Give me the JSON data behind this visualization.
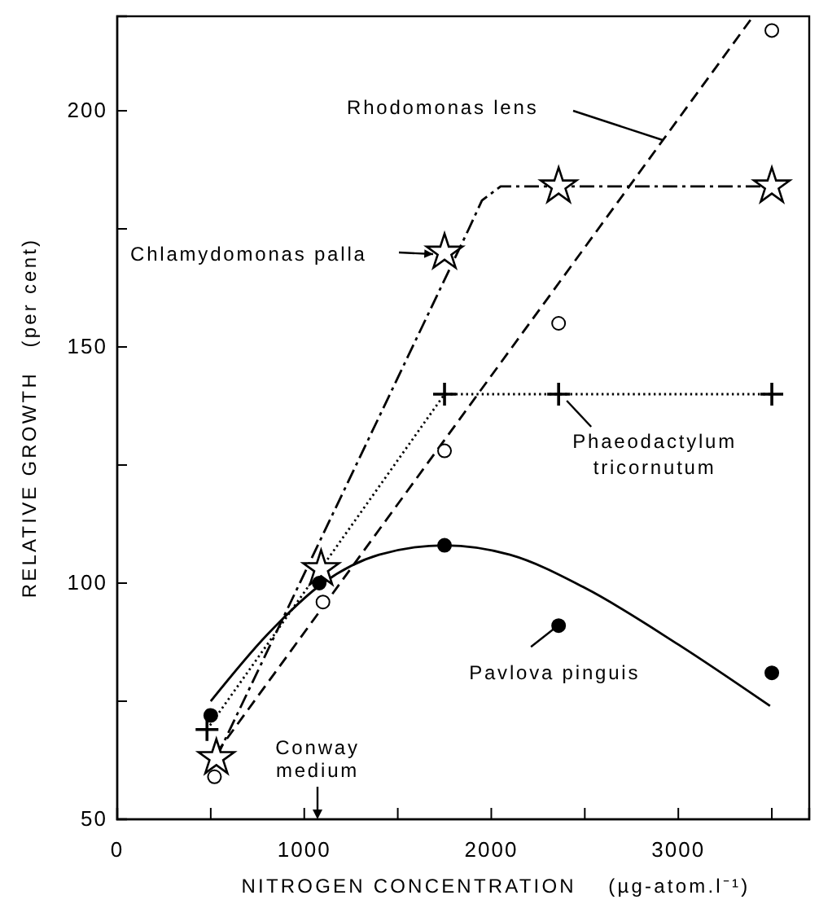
{
  "chart_data": {
    "type": "scatter",
    "xlabel": "NITROGEN CONCENTRATION (µg-atom.l⁻¹)",
    "ylabel": "RELATIVE GROWTH (per cent)",
    "xlim": [
      0,
      3700
    ],
    "ylim": [
      50,
      220
    ],
    "xticks": [
      0,
      {
        "value": 500,
        "label": null
      },
      1000,
      {
        "value": 1500,
        "label": null
      },
      2000,
      {
        "value": 2500,
        "label": null
      },
      3000,
      {
        "value": 3500,
        "label": null
      }
    ],
    "yticks": [
      50,
      {
        "value": 75,
        "label": null
      },
      100,
      {
        "value": 125,
        "label": null
      },
      150,
      {
        "value": 175,
        "label": null
      },
      200
    ],
    "grid": false,
    "series": [
      {
        "marker": "circle",
        "color": "#ffffff",
        "x": [
          520,
          1100,
          1750,
          2360,
          3500
        ],
        "values": [
          59,
          96,
          128,
          155,
          217
        ]
      },
      {
        "type": "line",
        "line_style": "dashed",
        "marker": "none",
        "color": "#000000",
        "x": [
          530,
          3400
        ],
        "values": [
          64,
          220
        ]
      },
      {
        "marker": "star",
        "color": "#ffffff",
        "x": [
          530,
          1090,
          1750,
          2360,
          3500
        ],
        "values": [
          63,
          103,
          170,
          184,
          184
        ]
      },
      {
        "type": "line",
        "line_style": "dashdot",
        "marker": "none",
        "color": "#000000",
        "x": [
          530,
          1880,
          1950,
          2050,
          3500
        ],
        "values": [
          63,
          175,
          181,
          184,
          184
        ]
      },
      {
        "marker": "cross",
        "color": "#000000",
        "x": [
          480,
          1750,
          2360,
          3500
        ],
        "values": [
          69,
          140,
          140,
          140
        ]
      },
      {
        "type": "line",
        "line_style": "dotted",
        "marker": "none",
        "color": "#000000",
        "x": [
          480,
          1750,
          3500
        ],
        "values": [
          69,
          140,
          140
        ]
      },
      {
        "marker": "circle",
        "color": "#000000",
        "x": [
          500,
          1080,
          1750,
          2360,
          3500
        ],
        "values": [
          72,
          100,
          108,
          91,
          81
        ]
      },
      {
        "type": "line",
        "line_style": "solid",
        "marker": "none",
        "color": "#000000",
        "x": [
          500,
          800,
          1100,
          1400,
          1750,
          2100,
          2500,
          3000,
          3490
        ],
        "values": [
          75,
          89,
          100,
          106,
          108,
          106,
          99,
          87,
          74
        ]
      }
    ],
    "annotations": [
      "Rhodomonas lens",
      "Chlamydomonas palla",
      {
        "text": "Phaeodactylum tricornutum",
        "x": 2360,
        "y": 140
      },
      {
        "text": "Pavlova pinguis",
        "x": 2360,
        "y": 91
      },
      "Conway medium"
    ]
  }
}
